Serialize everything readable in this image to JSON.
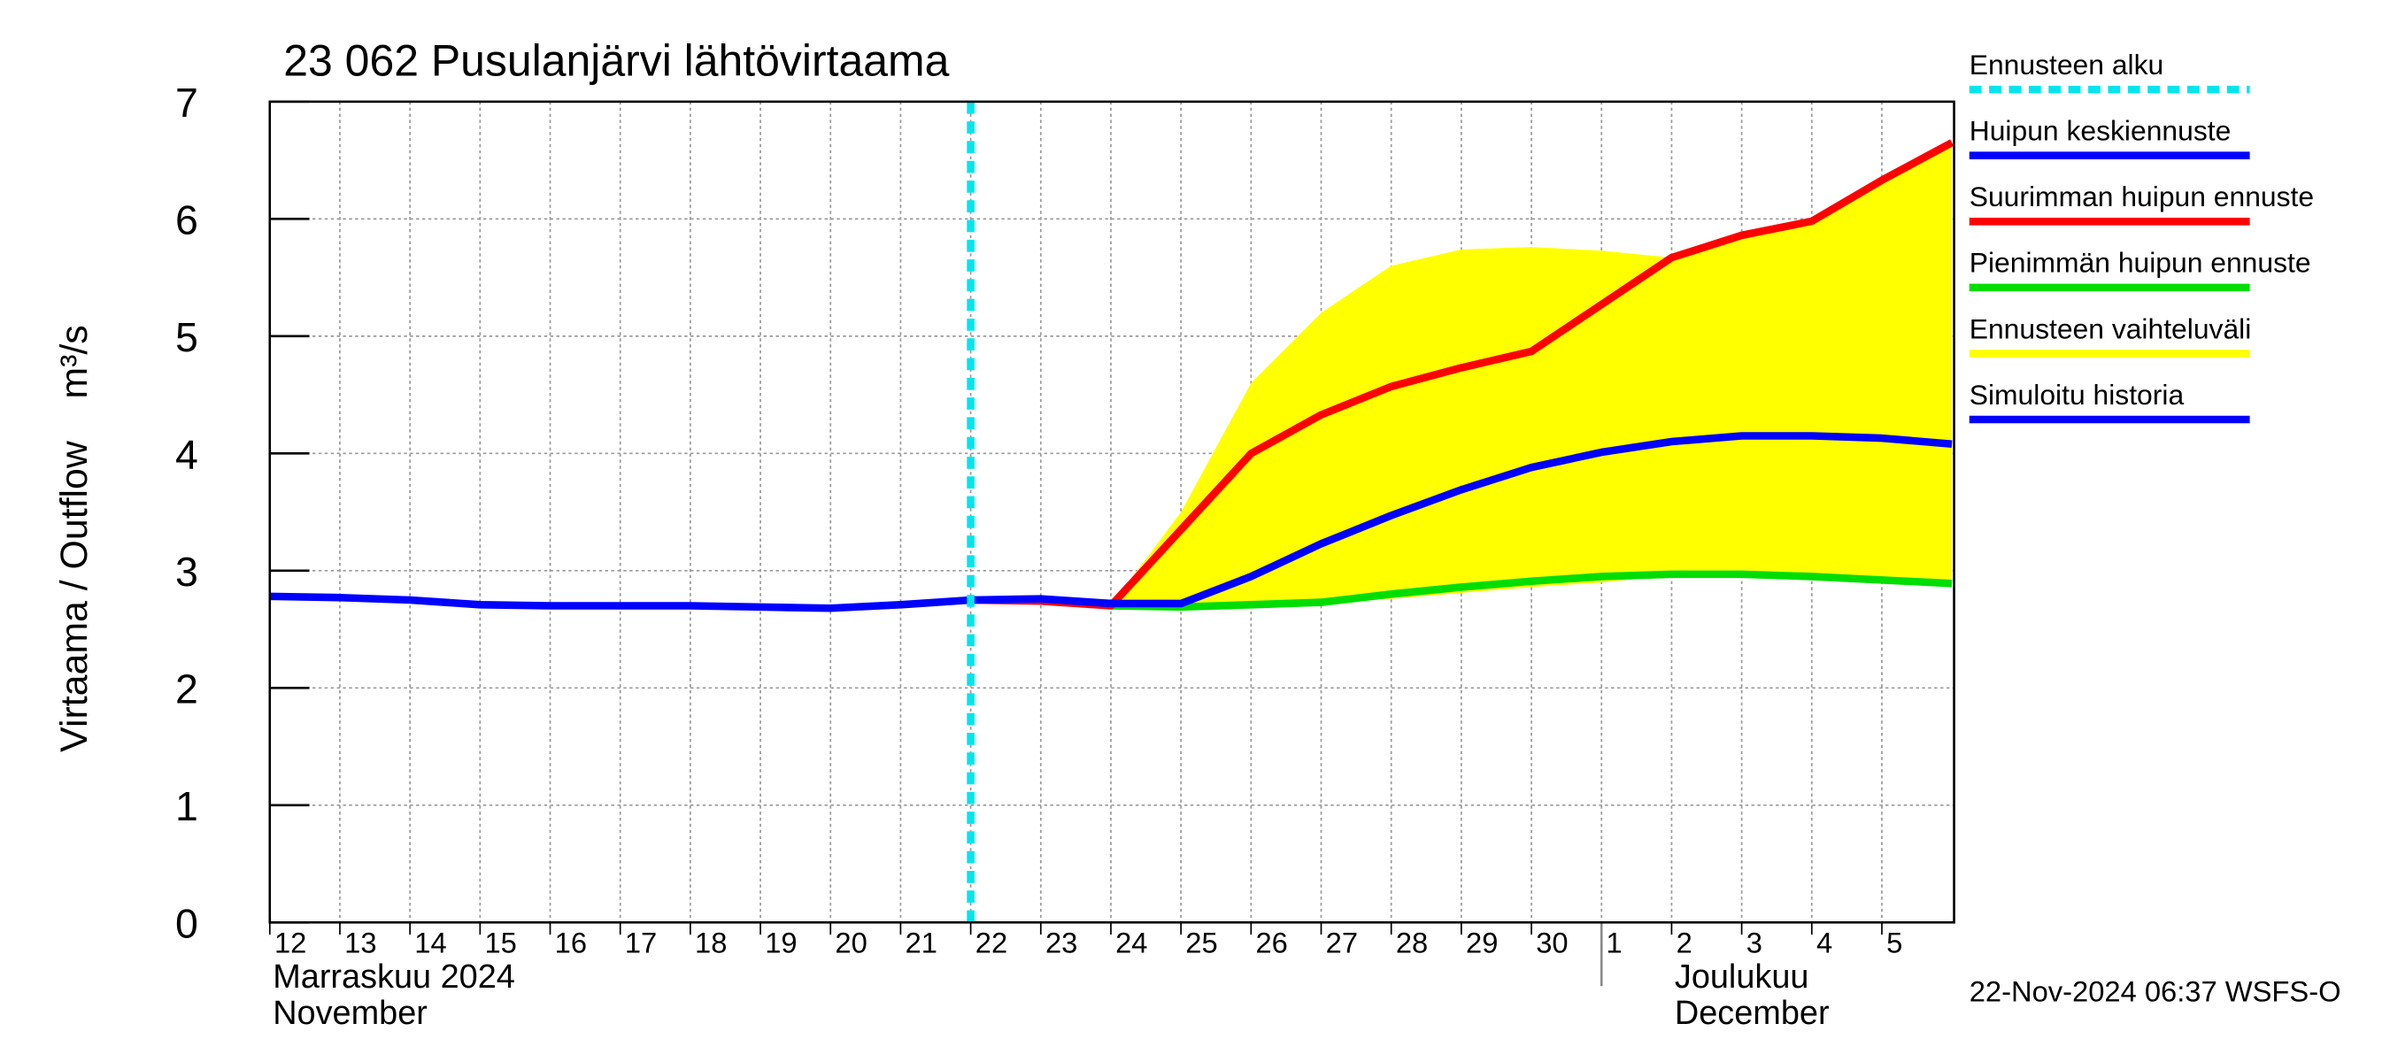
{
  "chart_data": {
    "type": "line",
    "title": "23 062 Pusulanjärvi lähtövirtaama",
    "ylabel": "Virtaama / Outflow    m³/s",
    "xlim": [
      0,
      24.03
    ],
    "ylim": [
      0,
      7
    ],
    "yticks": [
      0,
      1,
      2,
      3,
      4,
      5,
      6,
      7
    ],
    "xticks": [
      {
        "value": 0,
        "label": "12"
      },
      {
        "value": 1,
        "label": "13"
      },
      {
        "value": 2,
        "label": "14"
      },
      {
        "value": 3,
        "label": "15"
      },
      {
        "value": 4,
        "label": "16"
      },
      {
        "value": 5,
        "label": "17"
      },
      {
        "value": 6,
        "label": "18"
      },
      {
        "value": 7,
        "label": "19"
      },
      {
        "value": 8,
        "label": "20"
      },
      {
        "value": 9,
        "label": "21"
      },
      {
        "value": 10,
        "label": "22"
      },
      {
        "value": 11,
        "label": "23"
      },
      {
        "value": 12,
        "label": "24"
      },
      {
        "value": 13,
        "label": "25"
      },
      {
        "value": 14,
        "label": "26"
      },
      {
        "value": 15,
        "label": "27"
      },
      {
        "value": 16,
        "label": "28"
      },
      {
        "value": 17,
        "label": "29"
      },
      {
        "value": 18,
        "label": "30"
      },
      {
        "value": 19,
        "label": "1"
      },
      {
        "value": 20,
        "label": "2"
      },
      {
        "value": 21,
        "label": "3"
      },
      {
        "value": 22,
        "label": "4"
      },
      {
        "value": 23,
        "label": "5"
      }
    ],
    "month_labels": [
      {
        "value": 0,
        "lines": [
          "Marraskuu 2024",
          "November"
        ]
      },
      {
        "value": 19,
        "lines": [
          "Joulukuu",
          "December"
        ]
      }
    ],
    "grid": true,
    "forecast_start": {
      "name": "Ennusteen alku",
      "color": "#00e5ee",
      "x": 10
    },
    "series": [
      {
        "name": "Huipun keskiennuste",
        "color": "#0000ff",
        "x": [
          12,
          13,
          14,
          15,
          16,
          17,
          18,
          19,
          20,
          21,
          22,
          23,
          24
        ],
        "values": [
          2.72,
          2.72,
          2.95,
          3.23,
          3.47,
          3.69,
          3.88,
          4.01,
          4.1,
          4.15,
          4.15,
          4.13,
          4.08
        ]
      },
      {
        "name": "Suurimman huipun ennuste",
        "color": "#ff0000",
        "x": [
          10,
          11,
          12,
          13,
          14,
          15,
          16,
          17,
          18,
          19,
          20,
          21,
          22,
          23,
          24
        ],
        "values": [
          2.75,
          2.74,
          2.7,
          3.35,
          4.0,
          4.33,
          4.57,
          4.73,
          4.87,
          5.27,
          5.67,
          5.86,
          5.98,
          6.33,
          6.65
        ]
      },
      {
        "name": "Pienimmän huipun ennuste",
        "color": "#00dd00",
        "x": [
          12,
          13,
          14,
          15,
          16,
          17,
          18,
          19,
          20,
          21,
          22,
          23,
          24
        ],
        "values": [
          2.7,
          2.69,
          2.71,
          2.73,
          2.8,
          2.86,
          2.91,
          2.95,
          2.97,
          2.97,
          2.95,
          2.92,
          2.89
        ]
      },
      {
        "name": "Ennusteen vaihteluväli",
        "color": "#ffff00",
        "x": [
          12,
          13,
          14,
          15,
          16,
          17,
          18,
          19,
          20,
          21,
          22,
          23,
          24
        ],
        "upper": [
          2.7,
          3.5,
          4.6,
          5.2,
          5.6,
          5.74,
          5.76,
          5.73,
          5.67,
          5.86,
          5.98,
          6.33,
          6.65
        ],
        "lower": [
          2.7,
          2.67,
          2.7,
          2.72,
          2.76,
          2.81,
          2.86,
          2.9,
          2.96,
          2.97,
          2.95,
          2.92,
          2.89
        ]
      },
      {
        "name": "Simuloitu historia",
        "color": "#0000ff",
        "x": [
          0,
          1,
          2,
          3,
          4,
          5,
          6,
          7,
          8,
          9,
          10,
          11,
          12
        ],
        "values": [
          2.78,
          2.77,
          2.75,
          2.71,
          2.7,
          2.7,
          2.7,
          2.69,
          2.68,
          2.71,
          2.75,
          2.76,
          2.72
        ]
      }
    ],
    "footer": "22-Nov-2024 06:37 WSFS-O"
  }
}
